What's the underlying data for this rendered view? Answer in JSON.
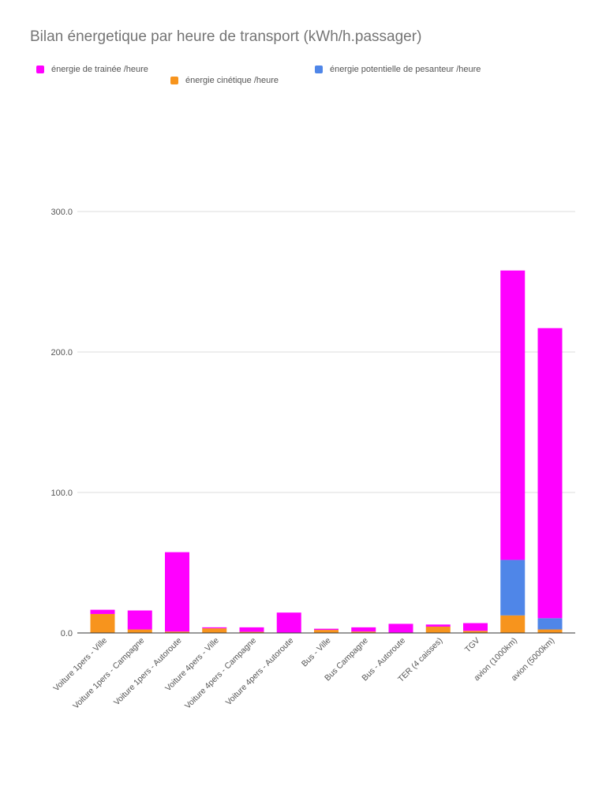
{
  "colors": {
    "drag": "#ff00ff",
    "kinetic": "#f7941d",
    "potential": "#4f86e8",
    "grid": "#dddddd",
    "baseline": "#333333",
    "text": "#555555",
    "title": "#757575"
  },
  "chart_data": {
    "type": "bar",
    "stacked": true,
    "title": "Bilan énergetique par heure de transport (kWh/h.passager)",
    "xlabel": "",
    "ylabel": "",
    "ylim": [
      0,
      300
    ],
    "yticks": [
      0,
      100,
      200,
      300
    ],
    "ytick_labels": [
      "0.0",
      "100.0",
      "200.0",
      "300.0"
    ],
    "grid": true,
    "legend_position": "top",
    "categories": [
      "Voiture 1pers - Ville",
      "Voiture 1pers - Campagne",
      "Voiture 1pers - Autoroute",
      "Voiture 4pers - Ville",
      "Voiture 4pers - Campagne",
      "Voiture 4pers - Autoroute",
      "Bus - Ville",
      "Bus Campagne",
      "Bus - Autoroute",
      "TER (4 caisses)",
      "TGV",
      "avion (1000km)",
      "avion (5000km)"
    ],
    "series": [
      {
        "name": "énergie cinétique /heure",
        "color_key": "kinetic",
        "values": [
          13.5,
          2.5,
          1.0,
          3.3,
          0.8,
          0.3,
          2.2,
          1.0,
          0.3,
          4.5,
          1.5,
          12.5,
          2.5
        ]
      },
      {
        "name": "énergie potentielle de pesanteur /heure",
        "color_key": "potential",
        "values": [
          0,
          0,
          0,
          0,
          0,
          0,
          0,
          0,
          0,
          0,
          0,
          39.5,
          8.0
        ]
      },
      {
        "name": "énergie de trainée /heure",
        "color_key": "drag",
        "values": [
          3.0,
          13.5,
          56.5,
          0.7,
          3.2,
          14.2,
          0.8,
          3.0,
          6.2,
          1.5,
          5.5,
          206.0,
          206.5
        ]
      }
    ],
    "legend_order": [
      2,
      0,
      1
    ]
  }
}
